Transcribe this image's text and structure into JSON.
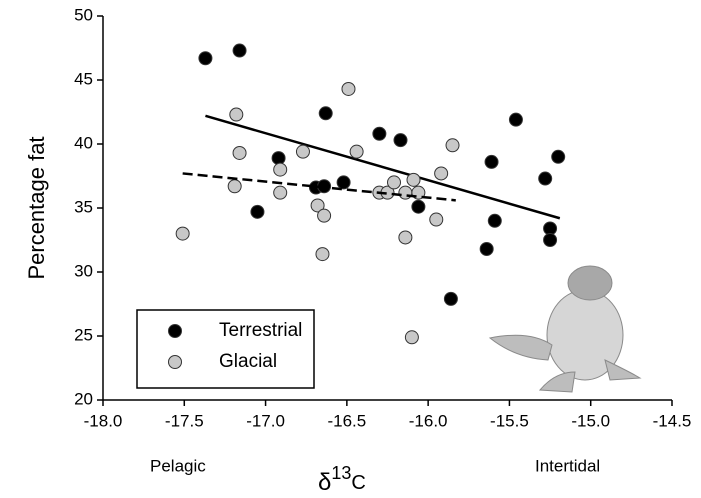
{
  "chart_data": {
    "type": "scatter",
    "ylabel": "Percentage fat",
    "xlabel": {
      "symbol": "δ",
      "sup": "13",
      "base": "C"
    },
    "annotations": [
      "Pelagic",
      "Intertidal"
    ],
    "xlim": [
      -18,
      -14.5
    ],
    "xticks": [
      {
        "value": -18,
        "label": "-18.0"
      },
      -17.5,
      {
        "value": -17,
        "label": "-17.0"
      },
      -16.5,
      {
        "value": -16,
        "label": "-16.0"
      },
      -15.5,
      {
        "value": -15,
        "label": "-15.0"
      },
      -14.5
    ],
    "ylim": [
      20,
      50
    ],
    "yticks": [
      20,
      25,
      30,
      35,
      40,
      45,
      50
    ],
    "legend": "lower left",
    "series": [
      {
        "name": "Terrestrial",
        "color": "#000000",
        "line_style": "solid",
        "x": [
          -17.37,
          -17.16,
          -16.92,
          -16.63,
          -16.3,
          -16.17,
          -15.46,
          -17.05,
          -16.69,
          -16.64,
          -16.52,
          -16.06,
          -15.61,
          -15.59,
          -15.64,
          -15.86,
          -15.28,
          -15.2,
          -15.25,
          -15.25
        ],
        "values": [
          46.7,
          47.3,
          38.9,
          42.4,
          40.8,
          40.3,
          41.9,
          34.7,
          36.6,
          36.7,
          37.0,
          35.1,
          38.6,
          34.0,
          31.8,
          27.9,
          37.3,
          39.0,
          33.4,
          32.5
        ],
        "trend": {
          "x": [
            -17.37,
            -15.19
          ],
          "values": [
            42.2,
            34.2
          ]
        }
      },
      {
        "name": "Glacial",
        "color": "#c8c8c8",
        "line_style": "dashed",
        "x": [
          -17.51,
          -17.18,
          -17.16,
          -17.19,
          -16.91,
          -16.91,
          -16.77,
          -16.68,
          -16.64,
          -16.65,
          -16.49,
          -16.44,
          -16.3,
          -16.25,
          -16.21,
          -16.14,
          -16.09,
          -16.06,
          -16.14,
          -16.1,
          -15.92,
          -15.95,
          -15.85
        ],
        "values": [
          33.0,
          42.3,
          39.3,
          36.7,
          38.0,
          36.2,
          39.4,
          35.2,
          34.4,
          31.4,
          44.3,
          39.4,
          36.2,
          36.2,
          37.0,
          36.2,
          37.2,
          36.2,
          32.7,
          24.9,
          37.7,
          34.1,
          39.9
        ],
        "trend": {
          "x": [
            -17.51,
            -15.83
          ],
          "values": [
            37.7,
            35.6
          ]
        }
      }
    ]
  }
}
